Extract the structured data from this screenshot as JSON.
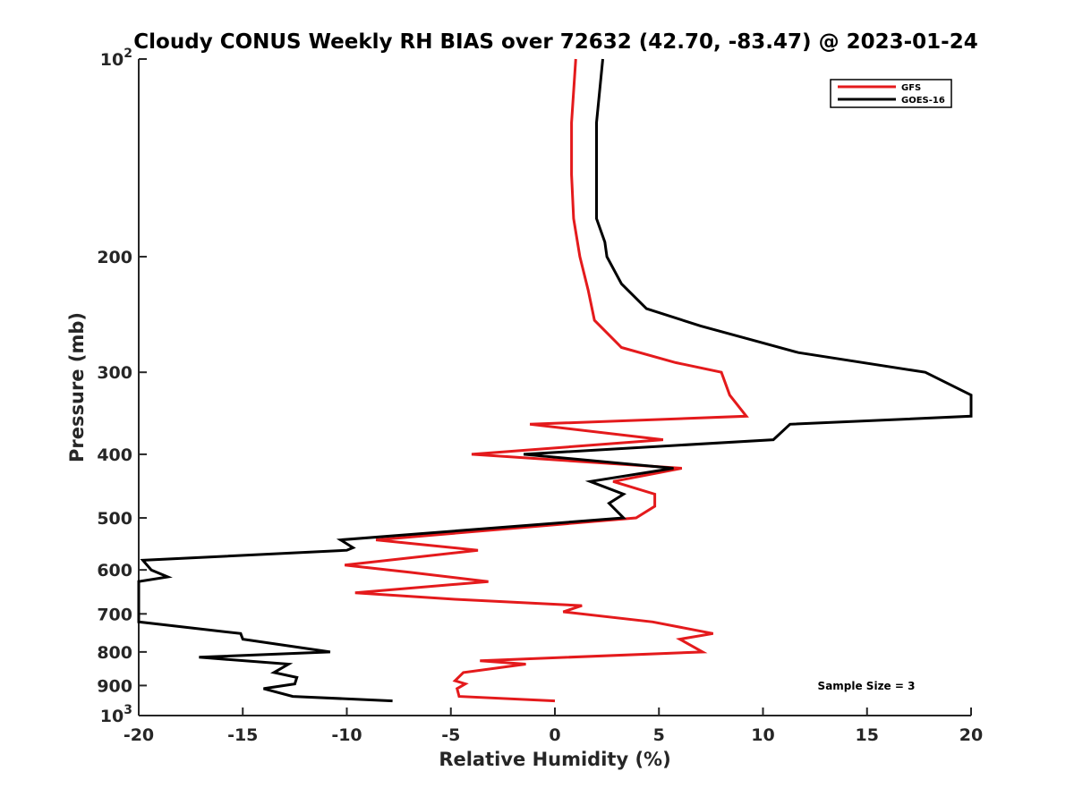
{
  "chart_data": {
    "type": "line",
    "title": "Cloudy CONUS Weekly RH BIAS over 72632 (42.70, -83.47) @ 2023-01-24",
    "xlabel": "Relative Humidity (%)",
    "ylabel": "Pressure (mb)",
    "xlim": [
      -20,
      20
    ],
    "ylim": [
      100,
      1000
    ],
    "yscale": "log",
    "y_reversed": true,
    "grid": false,
    "legend_position": "top-right",
    "x_ticks": [
      {
        "value": -20,
        "label": "-20"
      },
      {
        "value": -15,
        "label": "-15"
      },
      {
        "value": -10,
        "label": "-10"
      },
      {
        "value": -5,
        "label": "-5"
      },
      {
        "value": 0,
        "label": "0"
      },
      {
        "value": 5,
        "label": "5"
      },
      {
        "value": 10,
        "label": "10"
      },
      {
        "value": 15,
        "label": "15"
      },
      {
        "value": 20,
        "label": "20"
      }
    ],
    "y_ticks": [
      {
        "value": 100,
        "base": "10",
        "exp": "2"
      },
      {
        "value": 200,
        "label": "200"
      },
      {
        "value": 300,
        "label": "300"
      },
      {
        "value": 400,
        "label": "400"
      },
      {
        "value": 500,
        "label": "500"
      },
      {
        "value": 600,
        "label": "600"
      },
      {
        "value": 700,
        "label": "700"
      },
      {
        "value": 800,
        "label": "800"
      },
      {
        "value": 900,
        "label": "900"
      },
      {
        "value": 1000,
        "base": "10",
        "exp": "3"
      }
    ],
    "series": [
      {
        "name": "GFS",
        "color": "#e41a1c",
        "points": [
          [
            1.0,
            100
          ],
          [
            0.8,
            125
          ],
          [
            0.8,
            150
          ],
          [
            0.9,
            175
          ],
          [
            1.2,
            200
          ],
          [
            1.6,
            225
          ],
          [
            1.9,
            250
          ],
          [
            3.2,
            275
          ],
          [
            5.8,
            290
          ],
          [
            8.0,
            300
          ],
          [
            8.4,
            325
          ],
          [
            9.2,
            350
          ],
          [
            -1.2,
            360
          ],
          [
            5.2,
            380
          ],
          [
            -4.0,
            400
          ],
          [
            6.1,
            420
          ],
          [
            2.8,
            440
          ],
          [
            4.8,
            460
          ],
          [
            4.8,
            480
          ],
          [
            3.9,
            500
          ],
          [
            -8.6,
            540
          ],
          [
            -3.7,
            560
          ],
          [
            -10.1,
            590
          ],
          [
            -7.0,
            605
          ],
          [
            -3.2,
            625
          ],
          [
            -9.6,
            650
          ],
          [
            -4.8,
            665
          ],
          [
            1.3,
            680
          ],
          [
            0.4,
            695
          ],
          [
            4.7,
            720
          ],
          [
            7.6,
            750
          ],
          [
            6.0,
            765
          ],
          [
            7.1,
            800
          ],
          [
            -3.6,
            825
          ],
          [
            -1.4,
            835
          ],
          [
            -4.4,
            860
          ],
          [
            -4.8,
            885
          ],
          [
            -4.3,
            895
          ],
          [
            -4.7,
            910
          ],
          [
            -4.6,
            935
          ],
          [
            0.0,
            950
          ]
        ]
      },
      {
        "name": "GOES-16",
        "color": "#000000",
        "points": [
          [
            2.3,
            100
          ],
          [
            2.0,
            125
          ],
          [
            2.0,
            150
          ],
          [
            2.0,
            175
          ],
          [
            2.4,
            190
          ],
          [
            2.5,
            200
          ],
          [
            3.2,
            220
          ],
          [
            4.4,
            240
          ],
          [
            7.0,
            255
          ],
          [
            11.7,
            280
          ],
          [
            17.8,
            300
          ],
          [
            20.0,
            325
          ],
          [
            20.0,
            350
          ],
          [
            11.3,
            360
          ],
          [
            10.5,
            380
          ],
          [
            -1.5,
            400
          ],
          [
            5.7,
            420
          ],
          [
            1.7,
            440
          ],
          [
            3.3,
            460
          ],
          [
            2.6,
            475
          ],
          [
            3.3,
            500
          ],
          [
            -10.3,
            540
          ],
          [
            -9.7,
            555
          ],
          [
            -10.0,
            560
          ],
          [
            -19.8,
            580
          ],
          [
            -19.4,
            600
          ],
          [
            -18.6,
            615
          ],
          [
            -20.0,
            625
          ],
          [
            -20.0,
            720
          ],
          [
            -15.1,
            750
          ],
          [
            -15.0,
            765
          ],
          [
            -10.8,
            800
          ],
          [
            -17.1,
            815
          ],
          [
            -12.8,
            835
          ],
          [
            -13.5,
            860
          ],
          [
            -12.4,
            875
          ],
          [
            -12.5,
            895
          ],
          [
            -14.0,
            910
          ],
          [
            -12.6,
            935
          ],
          [
            -7.8,
            950
          ]
        ]
      }
    ],
    "annotations": [
      {
        "text": "Sample Size = 3"
      }
    ]
  }
}
